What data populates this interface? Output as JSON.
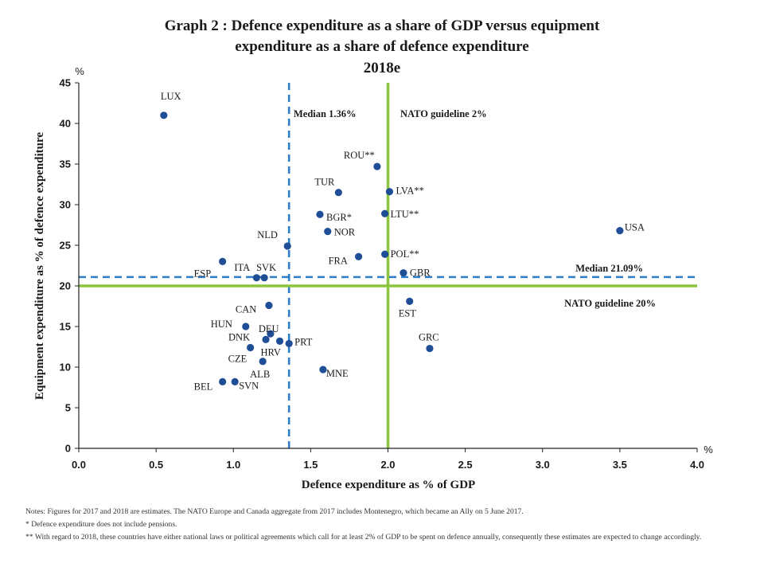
{
  "chart_data": {
    "type": "scatter",
    "title_lines": [
      "Graph 2 : Defence expenditure as a share of GDP versus equipment",
      "expenditure as a share of defence expenditure",
      "2018e"
    ],
    "xlabel": "Defence expenditure as % of GDP",
    "ylabel": "Equipment expenditure as % of defence expenditure",
    "x_unit": "%",
    "y_unit": "%",
    "xlim": [
      0,
      4
    ],
    "ylim": [
      0,
      45
    ],
    "x_ticks": [
      "0.0",
      "0.5",
      "1.0",
      "1.5",
      "2.0",
      "2.5",
      "3.0",
      "3.5",
      "4.0"
    ],
    "y_ticks": [
      "0",
      "5",
      "10",
      "15",
      "20",
      "25",
      "30",
      "35",
      "40",
      "45"
    ],
    "grid": false,
    "point_color": "#1f4e96",
    "reference_lines": [
      {
        "axis": "x",
        "value": 1.36,
        "style": "dashed",
        "color": "#2f7dc6",
        "label": "Median 1.36%"
      },
      {
        "axis": "x",
        "value": 2.0,
        "style": "solid",
        "color": "#8cc63e",
        "label": "NATO guideline 2%"
      },
      {
        "axis": "y",
        "value": 21.09,
        "style": "dashed",
        "color": "#2f7dc6",
        "label": "Median 21.09%"
      },
      {
        "axis": "y",
        "value": 20.0,
        "style": "solid",
        "color": "#8cc63e",
        "label": "NATO guideline 20%"
      }
    ],
    "points": [
      {
        "label": "LUX",
        "x": 0.55,
        "y": 41.0
      },
      {
        "label": "ROU**",
        "x": 1.93,
        "y": 34.7
      },
      {
        "label": "TUR",
        "x": 1.68,
        "y": 31.5
      },
      {
        "label": "LVA**",
        "x": 2.01,
        "y": 31.6
      },
      {
        "label": "BGR*",
        "x": 1.56,
        "y": 28.8
      },
      {
        "label": "LTU**",
        "x": 1.98,
        "y": 28.9
      },
      {
        "label": "NOR",
        "x": 1.61,
        "y": 26.7
      },
      {
        "label": "USA",
        "x": 3.5,
        "y": 26.8
      },
      {
        "label": "NLD",
        "x": 1.35,
        "y": 24.9
      },
      {
        "label": "FRA",
        "x": 1.81,
        "y": 23.6
      },
      {
        "label": "POL**",
        "x": 1.98,
        "y": 23.9
      },
      {
        "label": "ESP",
        "x": 0.93,
        "y": 23.0
      },
      {
        "label": "GBR",
        "x": 2.1,
        "y": 21.6
      },
      {
        "label": "ITA",
        "x": 1.15,
        "y": 21.0
      },
      {
        "label": "SVK",
        "x": 1.2,
        "y": 21.0
      },
      {
        "label": "EST",
        "x": 2.14,
        "y": 18.1
      },
      {
        "label": "CAN",
        "x": 1.23,
        "y": 17.6
      },
      {
        "label": "HUN",
        "x": 1.08,
        "y": 15.0
      },
      {
        "label": "DEU",
        "x": 1.24,
        "y": 14.1
      },
      {
        "label": "DNK",
        "x": 1.21,
        "y": 13.4
      },
      {
        "label": "PRT",
        "x": 1.36,
        "y": 12.9
      },
      {
        "label": "HRV",
        "x": 1.3,
        "y": 13.2
      },
      {
        "label": "GRC",
        "x": 2.27,
        "y": 12.3
      },
      {
        "label": "CZE",
        "x": 1.11,
        "y": 12.4
      },
      {
        "label": "ALB",
        "x": 1.19,
        "y": 10.7
      },
      {
        "label": "MNE",
        "x": 1.58,
        "y": 9.7
      },
      {
        "label": "BEL",
        "x": 0.93,
        "y": 8.2
      },
      {
        "label": "SVN",
        "x": 1.01,
        "y": 8.2
      }
    ]
  },
  "notes": [
    "Notes: Figures for 2017 and 2018 are estimates. The NATO Europe and Canada aggregate from 2017 includes Montenegro, which became an Ally on 5 June 2017.",
    "*   Defence expenditure does not include pensions.",
    "**  With regard to 2018, these countries have either national laws or political agreements which call for at least 2% of GDP to be spent on defence annually, consequently these estimates are expected to change accordingly."
  ]
}
